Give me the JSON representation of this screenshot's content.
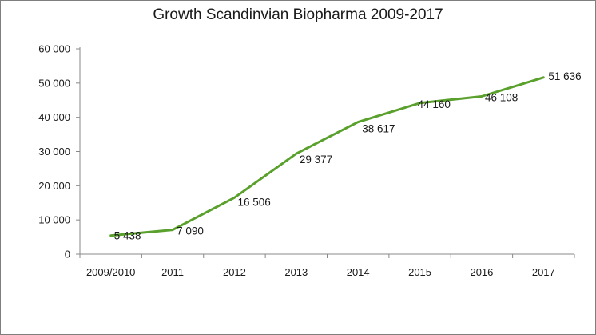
{
  "chart_data": {
    "type": "line",
    "title": "Growth Scandinvian Biopharma 2009-2017",
    "xlabel": "",
    "ylabel": "",
    "categories": [
      "2009/2010",
      "2011",
      "2012",
      "2013",
      "2014",
      "2015",
      "2016",
      "2017"
    ],
    "series": [
      {
        "values": [
          5438,
          7090,
          16506,
          29377,
          38617,
          44160,
          46108,
          51636
        ],
        "labels": [
          "5 438",
          "7 090",
          "16 506",
          "29 377",
          "38 617",
          "44 160",
          "46 108",
          "51 636"
        ],
        "color": "#5aa02c"
      }
    ],
    "ylim": [
      0,
      60000
    ],
    "yticks": [
      0,
      10000,
      20000,
      30000,
      40000,
      50000,
      60000
    ],
    "ytick_labels": [
      "0",
      "10 000",
      "20 000",
      "30 000",
      "40 000",
      "50 000",
      "60 000"
    ],
    "grid": false,
    "legend": "none"
  }
}
